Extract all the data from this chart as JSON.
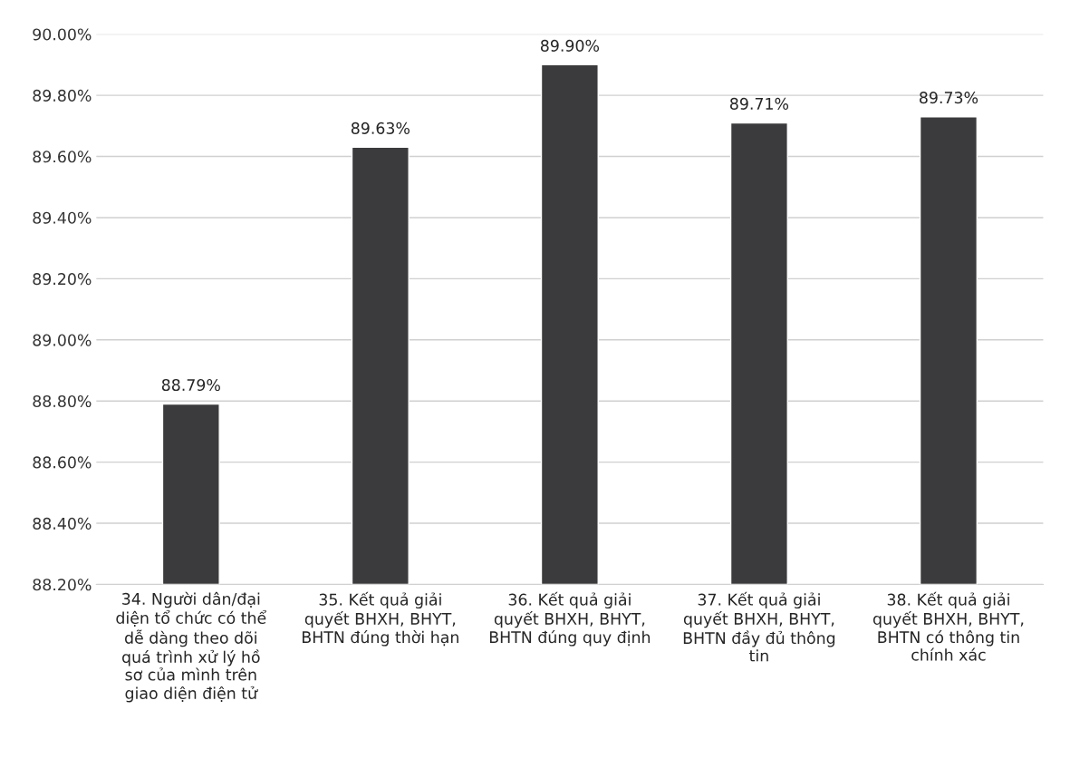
{
  "chart_data": {
    "type": "bar",
    "categories": [
      "34. Người dân/đại\ndiện tổ chức có thể\ndễ dàng theo dõi\nquá trình xử lý hồ\nsơ của mình trên\ngiao diện điện tử",
      "35. Kết quả giải\nquyết BHXH, BHYT,\nBHTN đúng thời hạn",
      "36. Kết quả giải\nquyết BHXH, BHYT,\nBHTN đúng quy định",
      "37. Kết quả giải\nquyết BHXH, BHYT,\nBHTN đầy đủ thông\ntin",
      "38. Kết quả giải\nquyết BHXH, BHYT,\nBHTN có thông tin\nchính xác"
    ],
    "values": [
      88.79,
      89.63,
      89.9,
      89.71,
      89.73
    ],
    "value_labels": [
      "88.79%",
      "89.63%",
      "89.90%",
      "89.71%",
      "89.73%"
    ],
    "color": "#3b3b3d",
    "ylim": [
      88.2,
      90.0
    ],
    "yticks": [
      {
        "value": 88.2,
        "label": "88.20%"
      },
      {
        "value": 88.4,
        "label": "88.40%"
      },
      {
        "value": 88.6,
        "label": "88.60%"
      },
      {
        "value": 88.8,
        "label": "88.80%"
      },
      {
        "value": 89.0,
        "label": "89.00%"
      },
      {
        "value": 89.2,
        "label": "89.20%"
      },
      {
        "value": 89.4,
        "label": "89.40%"
      },
      {
        "value": 89.6,
        "label": "89.60%"
      },
      {
        "value": 89.8,
        "label": "89.80%"
      },
      {
        "value": 90.0,
        "label": "90.00%"
      }
    ],
    "grid": "y",
    "legend": false
  }
}
